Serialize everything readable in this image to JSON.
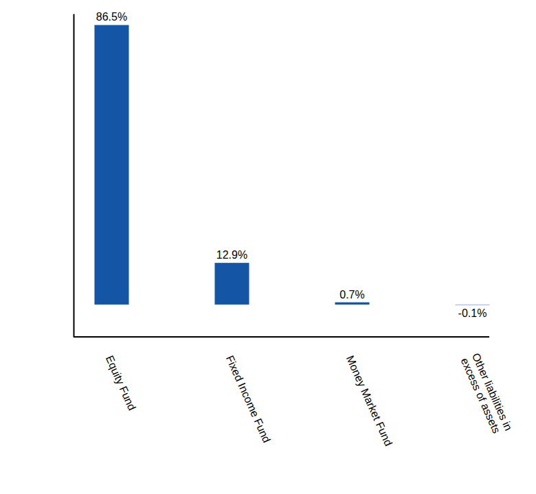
{
  "chart_data": {
    "type": "bar",
    "categories": [
      "Equity Fund",
      "Fixed Income Fund",
      "Money Market Fund",
      "Other liabilities in excess of assets"
    ],
    "values": [
      86.5,
      12.9,
      0.7,
      -0.1
    ],
    "value_labels": [
      "86.5%",
      "12.9%",
      "0.7%",
      "-0.1%"
    ],
    "color": "#1555a5",
    "ylim": [
      -10,
      90
    ],
    "data_labels": true,
    "grid": false,
    "tick_labels": "x"
  }
}
